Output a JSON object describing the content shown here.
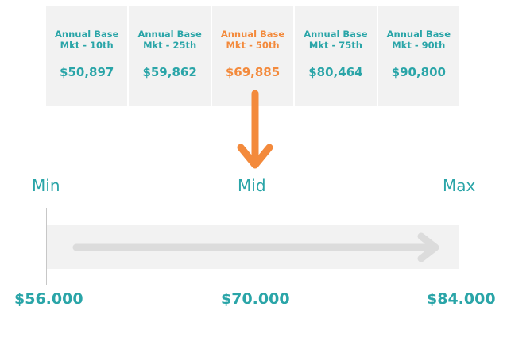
{
  "percentiles": [
    {
      "label": "Annual Base Mkt - 10th",
      "value": "$50,897",
      "highlight": false
    },
    {
      "label": "Annual Base Mkt - 25th",
      "value": "$59,862",
      "highlight": false
    },
    {
      "label": "Annual Base Mkt - 50th",
      "value": "$69,885",
      "highlight": true
    },
    {
      "label": "Annual Base Mkt - 75th",
      "value": "$80,464",
      "highlight": false
    },
    {
      "label": "Annual Base Mkt - 90th",
      "value": "$90,800",
      "highlight": false
    }
  ],
  "range": {
    "min_label": "Min",
    "mid_label": "Mid",
    "max_label": "Max",
    "min_value": "$56.000",
    "mid_value": "$70.000",
    "max_value": "$84.000"
  },
  "colors": {
    "teal": "#2aa5a8",
    "orange": "#f38a3c",
    "panel": "#f2f2f2",
    "arrow_gray": "#dcdcdc"
  },
  "icons": {
    "pointer": "down-arrow-icon",
    "range": "right-arrow-icon"
  }
}
